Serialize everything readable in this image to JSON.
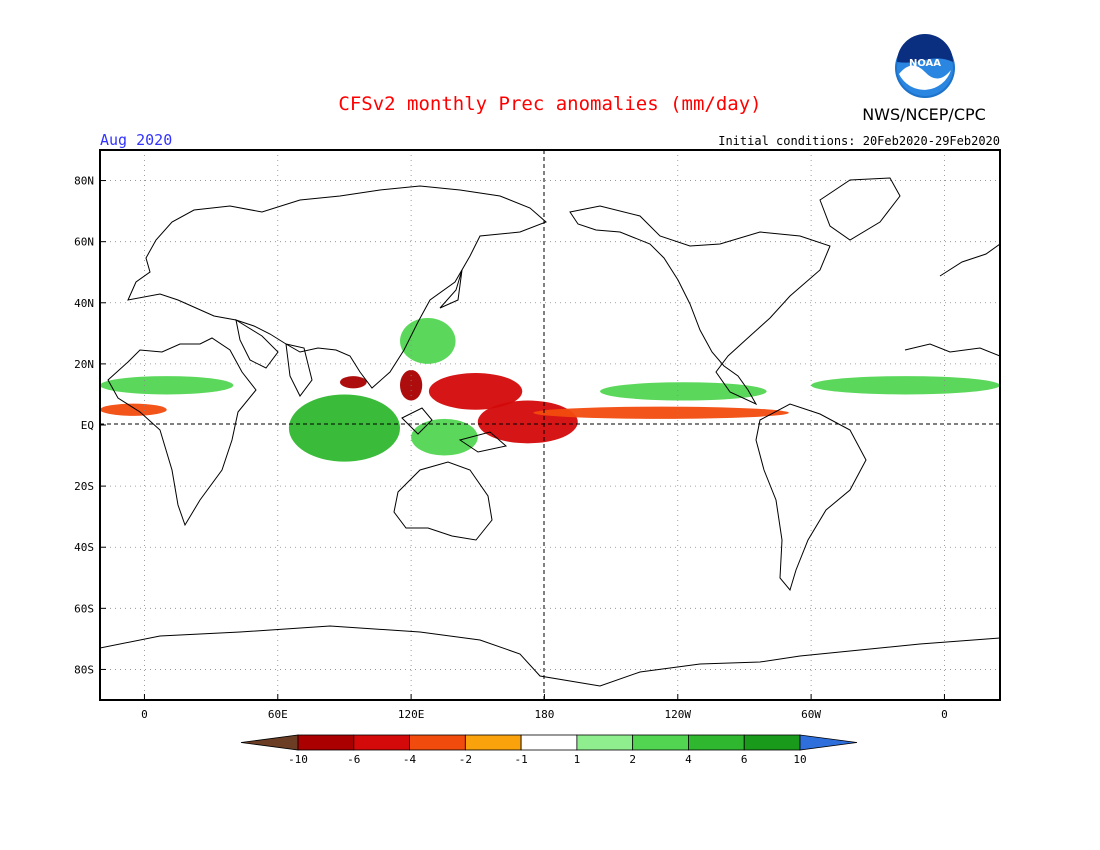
{
  "title": "CFSv2 monthly Prec anomalies (mm/day)",
  "month_label": "Aug 2020",
  "initial_conditions": "Initial conditions: 20Feb2020-29Feb2020",
  "agency": "NWS/NCEP/CPC",
  "logo_text": "NOAA",
  "colors": {
    "title": "#ff0000",
    "month": "#3333ff",
    "land_outline": "#000000",
    "grid": "#888888"
  },
  "map": {
    "lat_labels": [
      "80N",
      "60N",
      "40N",
      "20N",
      "EQ",
      "20S",
      "40S",
      "60S",
      "80S"
    ],
    "lon_labels": [
      "0",
      "60E",
      "120E",
      "180",
      "120W",
      "60W",
      "0"
    ],
    "lon_range": [
      -20,
      385
    ],
    "lat_range": [
      -90,
      90
    ],
    "lat_ticks": [
      80,
      60,
      40,
      20,
      0,
      -20,
      -40,
      -60,
      -80
    ],
    "lon_ticks": [
      0,
      60,
      120,
      180,
      240,
      300,
      360
    ]
  },
  "colorbar": {
    "labels": [
      "-10",
      "-6",
      "-4",
      "-2",
      "-1",
      "1",
      "2",
      "4",
      "6",
      "10"
    ],
    "colors": [
      "#6b3d25",
      "#aa0000",
      "#d40a0a",
      "#f24b0e",
      "#f9a20b",
      "#ffffff",
      "#8fef8f",
      "#52d652",
      "#2fb82f",
      "#1a9a1a",
      "#2f6fdb"
    ]
  },
  "anomalies": [
    {
      "name": "central-pacific-dry",
      "level": -4,
      "lon": [
        150,
        195
      ],
      "lat": [
        -6,
        8
      ]
    },
    {
      "name": "philippine-sea-dry",
      "level": -4,
      "lon": [
        128,
        170
      ],
      "lat": [
        5,
        17
      ]
    },
    {
      "name": "equatorial-pacific-dry-band",
      "level": -2,
      "lon": [
        175,
        290
      ],
      "lat": [
        2,
        6
      ]
    },
    {
      "name": "bay-of-bengal-dry",
      "level": -6,
      "lon": [
        88,
        100
      ],
      "lat": [
        12,
        16
      ]
    },
    {
      "name": "philippines-dry",
      "level": -6,
      "lon": [
        115,
        125
      ],
      "lat": [
        8,
        18
      ]
    },
    {
      "name": "tropical-atlantic-dry",
      "level": -2,
      "lon": [
        -20,
        10
      ],
      "lat": [
        3,
        7
      ]
    },
    {
      "name": "indian-ocean-wet",
      "level": 4,
      "lon": [
        65,
        115
      ],
      "lat": [
        -12,
        10
      ]
    },
    {
      "name": "maritime-continent-wet",
      "level": 2,
      "lon": [
        120,
        150
      ],
      "lat": [
        -10,
        2
      ]
    },
    {
      "name": "east-asia-wet",
      "level": 2,
      "lon": [
        115,
        140
      ],
      "lat": [
        20,
        35
      ]
    },
    {
      "name": "africa-sahel-wet",
      "level": 2,
      "lon": [
        -20,
        40
      ],
      "lat": [
        10,
        16
      ]
    },
    {
      "name": "east-pacific-wet",
      "level": 2,
      "lon": [
        205,
        280
      ],
      "lat": [
        8,
        14
      ]
    },
    {
      "name": "west-atlantic-wet",
      "level": 2,
      "lon": [
        300,
        385
      ],
      "lat": [
        10,
        16
      ]
    }
  ]
}
